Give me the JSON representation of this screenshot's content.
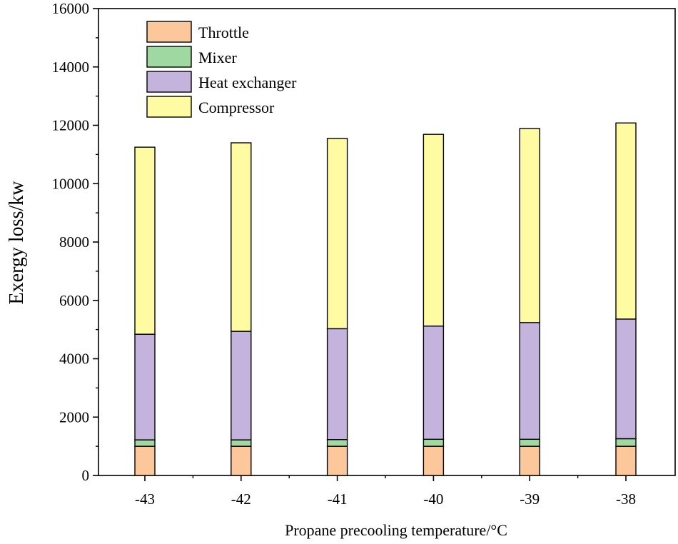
{
  "chart_data": {
    "type": "bar",
    "stacked": true,
    "title": "",
    "xlabel": "Propane precooling temperature/°C",
    "ylabel": "Exergy loss/kw",
    "categories": [
      "-43",
      "-42",
      "-41",
      "-40",
      "-39",
      "-38"
    ],
    "ylim": [
      0,
      16000
    ],
    "yticks": [
      0,
      2000,
      4000,
      6000,
      8000,
      10000,
      12000,
      14000,
      16000
    ],
    "ytick_labels": [
      "0",
      "2000",
      "4000",
      "6000",
      "8000",
      "10000",
      "12000",
      "14000",
      "16000"
    ],
    "legend_position": "top-left",
    "grid": false,
    "series": [
      {
        "name": "Throttle",
        "color": "#FCC79B",
        "values": [
          1000,
          1000,
          1000,
          1000,
          1000,
          1000
        ]
      },
      {
        "name": "Mixer",
        "color": "#9FD8A0",
        "values": [
          220,
          220,
          230,
          240,
          240,
          260
        ]
      },
      {
        "name": "Heat exchanger",
        "color": "#C3B3DD",
        "values": [
          3620,
          3720,
          3800,
          3880,
          4000,
          4100
        ]
      },
      {
        "name": "Compressor",
        "color": "#FFFBA3",
        "values": [
          6410,
          6460,
          6520,
          6570,
          6650,
          6720
        ]
      }
    ]
  }
}
